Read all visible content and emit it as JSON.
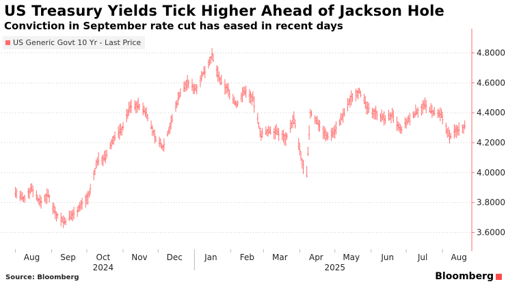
{
  "header": {
    "title": "US Treasury Yields Tick Higher Ahead of Jackson Hole",
    "subtitle": "Conviction in September rate cut has eased in recent days"
  },
  "legend": {
    "label": "US Generic Govt 10 Yr - Last Price",
    "color": "#ff6b6b"
  },
  "footer": {
    "source": "Source: Bloomberg",
    "brand": "Bloomberg"
  },
  "chart_data": {
    "type": "line",
    "title": "US Treasury Yields Tick Higher Ahead of Jackson Hole",
    "subtitle": "Conviction in September rate cut has eased in recent days",
    "xlabel": "",
    "ylabel": "",
    "ylim": [
      3.5,
      4.9
    ],
    "y_ticks": [
      "4.8000",
      "4.6000",
      "4.4000",
      "4.2000",
      "4.0000",
      "3.8000",
      "3.6000"
    ],
    "x_tick_labels": [
      "Aug",
      "Sep",
      "Oct",
      "Nov",
      "Dec",
      "Jan",
      "Feb",
      "Mar",
      "Apr",
      "May",
      "Jun",
      "Jul",
      "Aug"
    ],
    "year_labels": [
      "2024",
      "2025"
    ],
    "axis_position": "right",
    "grid": "horizontal dotted",
    "series": [
      {
        "name": "US Generic Govt 10 Yr - Last Price",
        "color": "#ff6b6b",
        "x": [
          "2024-08-01",
          "2024-08-08",
          "2024-08-15",
          "2024-08-22",
          "2024-08-29",
          "2024-09-05",
          "2024-09-12",
          "2024-09-19",
          "2024-09-26",
          "2024-10-03",
          "2024-10-10",
          "2024-10-17",
          "2024-10-24",
          "2024-10-31",
          "2024-11-07",
          "2024-11-14",
          "2024-11-21",
          "2024-11-28",
          "2024-12-05",
          "2024-12-12",
          "2024-12-19",
          "2024-12-26",
          "2025-01-02",
          "2025-01-09",
          "2025-01-16",
          "2025-01-23",
          "2025-01-30",
          "2025-02-06",
          "2025-02-13",
          "2025-02-20",
          "2025-02-27",
          "2025-03-06",
          "2025-03-13",
          "2025-03-20",
          "2025-03-27",
          "2025-04-03",
          "2025-04-07",
          "2025-04-10",
          "2025-04-17",
          "2025-04-24",
          "2025-05-01",
          "2025-05-08",
          "2025-05-15",
          "2025-05-22",
          "2025-05-29",
          "2025-06-05",
          "2025-06-12",
          "2025-06-19",
          "2025-06-26",
          "2025-07-03",
          "2025-07-10",
          "2025-07-17",
          "2025-07-24",
          "2025-07-31",
          "2025-08-07",
          "2025-08-14",
          "2025-08-20"
        ],
        "values": [
          3.87,
          3.82,
          3.9,
          3.8,
          3.85,
          3.72,
          3.67,
          3.72,
          3.78,
          3.85,
          4.08,
          4.1,
          4.23,
          4.29,
          4.44,
          4.45,
          4.4,
          4.24,
          4.17,
          4.33,
          4.52,
          4.6,
          4.56,
          4.67,
          4.78,
          4.61,
          4.55,
          4.45,
          4.55,
          4.49,
          4.25,
          4.28,
          4.27,
          4.23,
          4.36,
          4.06,
          3.99,
          4.4,
          4.33,
          4.24,
          4.28,
          4.38,
          4.5,
          4.55,
          4.42,
          4.4,
          4.36,
          4.38,
          4.28,
          4.35,
          4.41,
          4.45,
          4.4,
          4.38,
          4.24,
          4.29,
          4.31
        ]
      }
    ]
  }
}
